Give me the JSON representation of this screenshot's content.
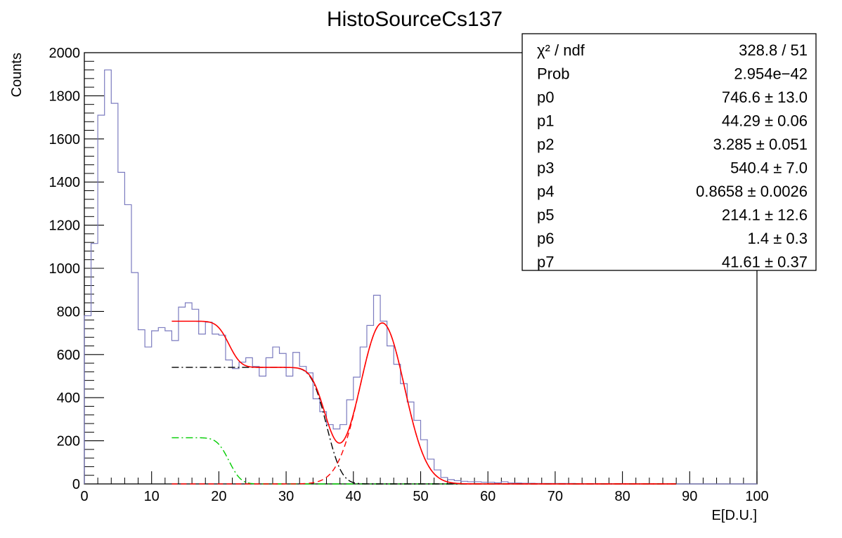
{
  "chart_data": {
    "type": "line",
    "title": "HistoSourceCs137",
    "xlabel": "E[D.U.]",
    "ylabel": "Counts",
    "xlim": [
      0,
      100
    ],
    "ylim": [
      0,
      2000
    ],
    "xticks": [
      "0",
      "10",
      "20",
      "30",
      "40",
      "50",
      "60",
      "70",
      "80",
      "90",
      "100"
    ],
    "yticks": [
      "0",
      "200",
      "400",
      "600",
      "800",
      "1000",
      "1200",
      "1400",
      "1600",
      "1800",
      "2000"
    ],
    "grid": false,
    "histogram": {
      "color": "#7b7bbf",
      "bin_width": 1,
      "bin_edges_start": 0,
      "values": [
        780,
        1115,
        1710,
        1920,
        1765,
        1445,
        1295,
        980,
        715,
        635,
        710,
        725,
        710,
        665,
        820,
        840,
        810,
        695,
        750,
        695,
        690,
        575,
        535,
        565,
        585,
        545,
        500,
        585,
        635,
        605,
        500,
        610,
        545,
        515,
        395,
        335,
        275,
        255,
        275,
        390,
        495,
        635,
        735,
        875,
        755,
        640,
        555,
        465,
        380,
        295,
        205,
        115,
        65,
        30,
        20,
        15,
        12,
        10,
        10,
        8,
        8,
        5,
        10,
        4,
        4,
        3,
        3,
        2,
        2,
        2,
        2,
        2,
        2,
        1,
        1,
        1,
        1,
        1,
        1,
        1,
        1,
        1,
        0,
        0,
        0,
        0,
        0,
        0,
        0,
        0,
        0,
        0,
        0,
        0,
        0,
        0,
        0,
        0,
        0,
        0
      ]
    },
    "fit_parameters": {
      "p0": 746.6,
      "p1": 44.29,
      "p2": 3.285,
      "p3": 540.4,
      "p4": 0.8658,
      "p5": 214.1,
      "p6": 1.4,
      "p7": 41.61,
      "fit_range": [
        13,
        88
      ]
    },
    "curves": [
      {
        "id": "total_fit",
        "color": "#ff0000",
        "style": "solid"
      },
      {
        "id": "gaussian",
        "color": "#ff0000",
        "style": "dashed"
      },
      {
        "id": "compton_edge",
        "color": "#000000",
        "style": "dashdot"
      },
      {
        "id": "background",
        "color": "#00cc00",
        "style": "dashdot"
      }
    ]
  },
  "stats_box": {
    "rows": [
      {
        "name": "χ² / ndf",
        "value": "328.8 / 51"
      },
      {
        "name": "Prob",
        "value": "2.954e−42"
      },
      {
        "name": "p0",
        "value": "746.6 ± 13.0"
      },
      {
        "name": "p1",
        "value": "44.29 ± 0.06"
      },
      {
        "name": "p2",
        "value": "3.285 ± 0.051"
      },
      {
        "name": "p3",
        "value": "540.4 ± 7.0"
      },
      {
        "name": "p4",
        "value": "0.8658 ± 0.0026"
      },
      {
        "name": "p5",
        "value": "214.1 ± 12.6"
      },
      {
        "name": "p6",
        "value": "1.4 ± 0.3"
      },
      {
        "name": "p7",
        "value": "41.61 ± 0.37"
      }
    ]
  }
}
